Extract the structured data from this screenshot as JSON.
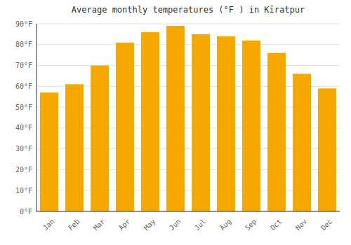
{
  "chart_data": {
    "type": "bar",
    "title": "Average monthly temperatures (°F ) in Kīratpur",
    "categories": [
      "Jan",
      "Feb",
      "Mar",
      "Apr",
      "May",
      "Jun",
      "Jul",
      "Aug",
      "Sep",
      "Oct",
      "Nov",
      "Dec"
    ],
    "values": [
      57,
      61,
      70,
      81,
      86,
      89,
      85,
      84,
      82,
      76,
      66,
      59
    ],
    "color": "#F5A800",
    "ylim": [
      0,
      90
    ],
    "yticks": [
      {
        "value": 0,
        "label": "0°F"
      },
      {
        "value": 10,
        "label": "10°F"
      },
      {
        "value": 20,
        "label": "20°F"
      },
      {
        "value": 30,
        "label": "30°F"
      },
      {
        "value": 40,
        "label": "40°F"
      },
      {
        "value": 50,
        "label": "50°F"
      },
      {
        "value": 60,
        "label": "60°F"
      },
      {
        "value": 70,
        "label": "70°F"
      },
      {
        "value": 80,
        "label": "80°F"
      },
      {
        "value": 90,
        "label": "90°F"
      }
    ],
    "grid": true
  }
}
